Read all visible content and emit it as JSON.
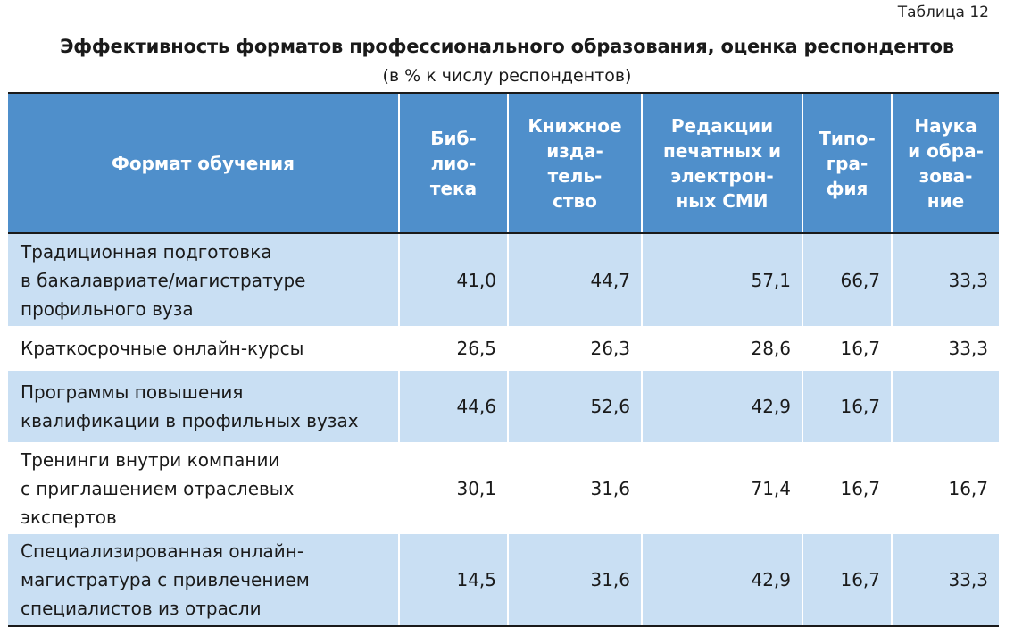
{
  "table_number": "Таблица 12",
  "title": "Эффективность форматов профессионального образования, оценка респондентов",
  "subtitle": "(в % к числу респондентов)",
  "header": {
    "format": "Формат обучения",
    "columns": [
      [
        "Биб-",
        "лио-",
        "тека"
      ],
      [
        "Книжное",
        "изда-",
        "тель-",
        "ство"
      ],
      [
        "Редакции",
        "печатных и",
        "электрон-",
        "ных СМИ"
      ],
      [
        "Типо-",
        "гра-",
        "фия"
      ],
      [
        "Наука",
        "и обра-",
        "зова-",
        "ние"
      ]
    ]
  },
  "rows": [
    {
      "format": [
        "Традиционная подготовка",
        "в бакалавриате/магистратуре",
        "профильного вуза"
      ],
      "values": [
        "41,0",
        "44,7",
        "57,1",
        "66,7",
        "33,3"
      ]
    },
    {
      "format": [
        "Краткосрочные онлайн-курсы"
      ],
      "values": [
        "26,5",
        "26,3",
        "28,6",
        "16,7",
        "33,3"
      ]
    },
    {
      "format": [
        "Программы повышения",
        "квалификации в профильных вузах"
      ],
      "values": [
        "44,6",
        "52,6",
        "42,9",
        "16,7",
        ""
      ]
    },
    {
      "format": [
        "Тренинги внутри компании",
        "с приглашением отраслевых",
        "экспертов"
      ],
      "values": [
        "30,1",
        "31,6",
        "71,4",
        "16,7",
        "16,7"
      ]
    },
    {
      "format": [
        "Специализированная онлайн-",
        "магистратура с привлечением",
        "специалистов из отрасли"
      ],
      "values": [
        "14,5",
        "31,6",
        "42,9",
        "16,7",
        "33,3"
      ]
    }
  ]
}
